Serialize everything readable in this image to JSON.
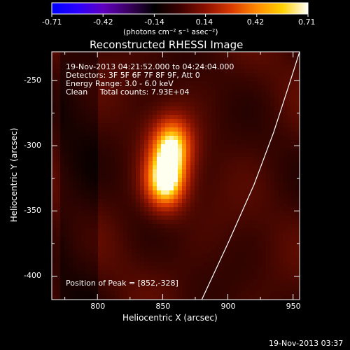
{
  "colorbar": {
    "ticks": [
      "-0.71",
      "-0.42",
      "-0.14",
      "0.14",
      "0.42",
      "0.71"
    ],
    "units": "(photons cm⁻² s⁻¹ asec⁻²)",
    "colors": [
      "#0000ff",
      "#2a00ff",
      "#6000c0",
      "#3a0060",
      "#000000",
      "#3c0000",
      "#8a1000",
      "#d83a00",
      "#ff8a00",
      "#ffd000",
      "#ffffff"
    ]
  },
  "title": "Reconstructed RHESSI Image",
  "info": {
    "line1": "19-Nov-2013 04:21:52.000 to 04:24:04.000",
    "line2": "Detectors: 3F 5F 6F 7F 8F 9F, Att 0",
    "line3": "Energy Range: 3.0 - 6.0 keV",
    "line4": "Clean     Total counts: 7.93E+04"
  },
  "peak_label": "Position of Peak = [852,-328]",
  "footer_timestamp": "19-Nov-2013 03:37",
  "axes": {
    "xlabel": "Heliocentric X (arcsec)",
    "ylabel": "Heliocentric Y (arcsec)",
    "xticks": [
      "800",
      "850",
      "900",
      "950"
    ],
    "yticks": [
      "-250",
      "-300",
      "-350",
      "-400"
    ],
    "xlim": [
      765,
      955
    ],
    "ylim": [
      -418,
      -228
    ]
  },
  "chart_data": {
    "type": "heatmap",
    "title": "Reconstructed RHESSI Image",
    "xlabel": "Heliocentric X (arcsec)",
    "ylabel": "Heliocentric Y (arcsec)",
    "xlim": [
      765,
      955
    ],
    "ylim": [
      -418,
      -228
    ],
    "value_range": [
      -0.71,
      0.71
    ],
    "peak": {
      "x": 852,
      "y": -328
    },
    "sources": [
      {
        "x": 852,
        "y": -328,
        "amplitude": 0.71
      },
      {
        "x": 857,
        "y": -300,
        "amplitude": 0.6
      }
    ],
    "limb_curve": [
      {
        "x": 880,
        "y": -418
      },
      {
        "x": 900,
        "y": -375
      },
      {
        "x": 920,
        "y": -330
      },
      {
        "x": 935,
        "y": -290
      },
      {
        "x": 948,
        "y": -250
      },
      {
        "x": 955,
        "y": -228
      }
    ]
  }
}
